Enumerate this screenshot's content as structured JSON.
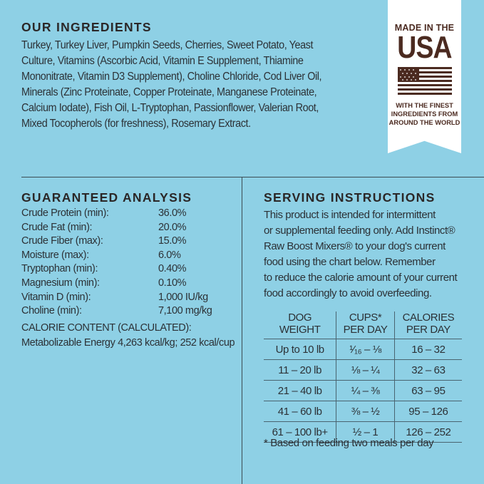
{
  "ingredients": {
    "heading": "OUR INGREDIENTS",
    "lines": [
      "Turkey, Turkey Liver, Pumpkin Seeds, Cherries, Sweet Potato, Yeast",
      "Culture, Vitamins (Ascorbic Acid, Vitamin E Supplement, Thiamine",
      "Mononitrate, Vitamin D3 Supplement), Choline Chloride, Cod Liver Oil,",
      "Minerals (Zinc Proteinate, Copper Proteinate, Manganese Proteinate,",
      "Calcium Iodate), Fish Oil, L-Tryptophan, Passionflower, Valerian Root,",
      "Mixed Tocopherols (for freshness), Rosemary Extract."
    ]
  },
  "badge": {
    "line1": "MADE IN THE",
    "line2": "USA",
    "line3": "WITH THE FINEST",
    "line4": "INGREDIENTS FROM",
    "line5": "AROUND THE WORLD",
    "icon": "us-flag-icon"
  },
  "analysis": {
    "heading": "GUARANTEED ANALYSIS",
    "rows": [
      {
        "label": "Crude Protein (min):",
        "value": "36.0%"
      },
      {
        "label": "Crude Fat (min):",
        "value": "20.0%"
      },
      {
        "label": "Crude Fiber (max):",
        "value": "15.0%"
      },
      {
        "label": "Moisture (max):",
        "value": "6.0%"
      },
      {
        "label": "Tryptophan (min):",
        "value": "0.40%"
      },
      {
        "label": "Magnesium (min):",
        "value": "0.10%"
      },
      {
        "label": "Vitamin D (min):",
        "value": "1,000 IU/kg"
      },
      {
        "label": "Choline (min):",
        "value": "7,100 mg/kg"
      }
    ],
    "calorie_heading": "CALORIE CONTENT (CALCULATED):",
    "calorie_value": "Metabolizable Energy 4,263 kcal/kg; 252 kcal/cup"
  },
  "serving": {
    "heading": "SERVING INSTRUCTIONS",
    "lines": [
      "This product is intended for intermittent",
      "or supplemental feeding only. Add Instinct®",
      "Raw Boost Mixers® to your dog's current",
      "food using the chart below. Remember",
      "to reduce the calorie amount of your current",
      "food accordingly to avoid overfeeding."
    ],
    "table": {
      "headers": [
        [
          "DOG",
          "WEIGHT"
        ],
        [
          "CUPS*",
          "PER DAY"
        ],
        [
          "CALORIES",
          "PER DAY"
        ]
      ],
      "rows": [
        [
          "Up to 10 lb",
          "¹⁄₁₆ – ⅛",
          "16 – 32"
        ],
        [
          "11 – 20 lb",
          "⅛ – ¼",
          "32 – 63"
        ],
        [
          "21 – 40 lb",
          "¼ – ⅜",
          "63 – 95"
        ],
        [
          "41 – 60 lb",
          "⅜ – ½",
          "95 – 126"
        ],
        [
          "61 – 100 lb+",
          "½ – 1",
          "126 – 252"
        ]
      ]
    },
    "note": "* Based on feeding two meals per day"
  }
}
